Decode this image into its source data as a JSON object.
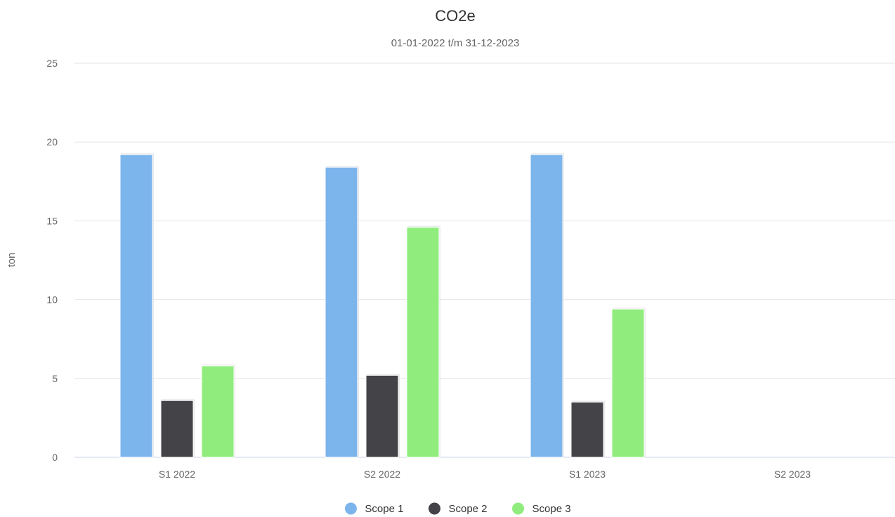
{
  "chart_data": {
    "type": "bar",
    "title": "CO2e",
    "subtitle": "01-01-2022 t/m 31-12-2023",
    "ylabel": "ton",
    "xlabel": "",
    "categories": [
      "S1 2022",
      "S2 2022",
      "S1 2023",
      "S2 2023"
    ],
    "series": [
      {
        "name": "Scope 1",
        "color": "#7cb5ec",
        "values": [
          19.2,
          18.4,
          19.2,
          0
        ]
      },
      {
        "name": "Scope 2",
        "color": "#434348",
        "values": [
          3.6,
          5.2,
          3.5,
          0
        ]
      },
      {
        "name": "Scope 3",
        "color": "#90ed7d",
        "values": [
          5.8,
          14.6,
          9.4,
          0
        ]
      }
    ],
    "ylim": [
      0,
      25
    ],
    "yticks": [
      0,
      5,
      10,
      15,
      20,
      25
    ],
    "grid": true,
    "legend_position": "bottom-center"
  }
}
